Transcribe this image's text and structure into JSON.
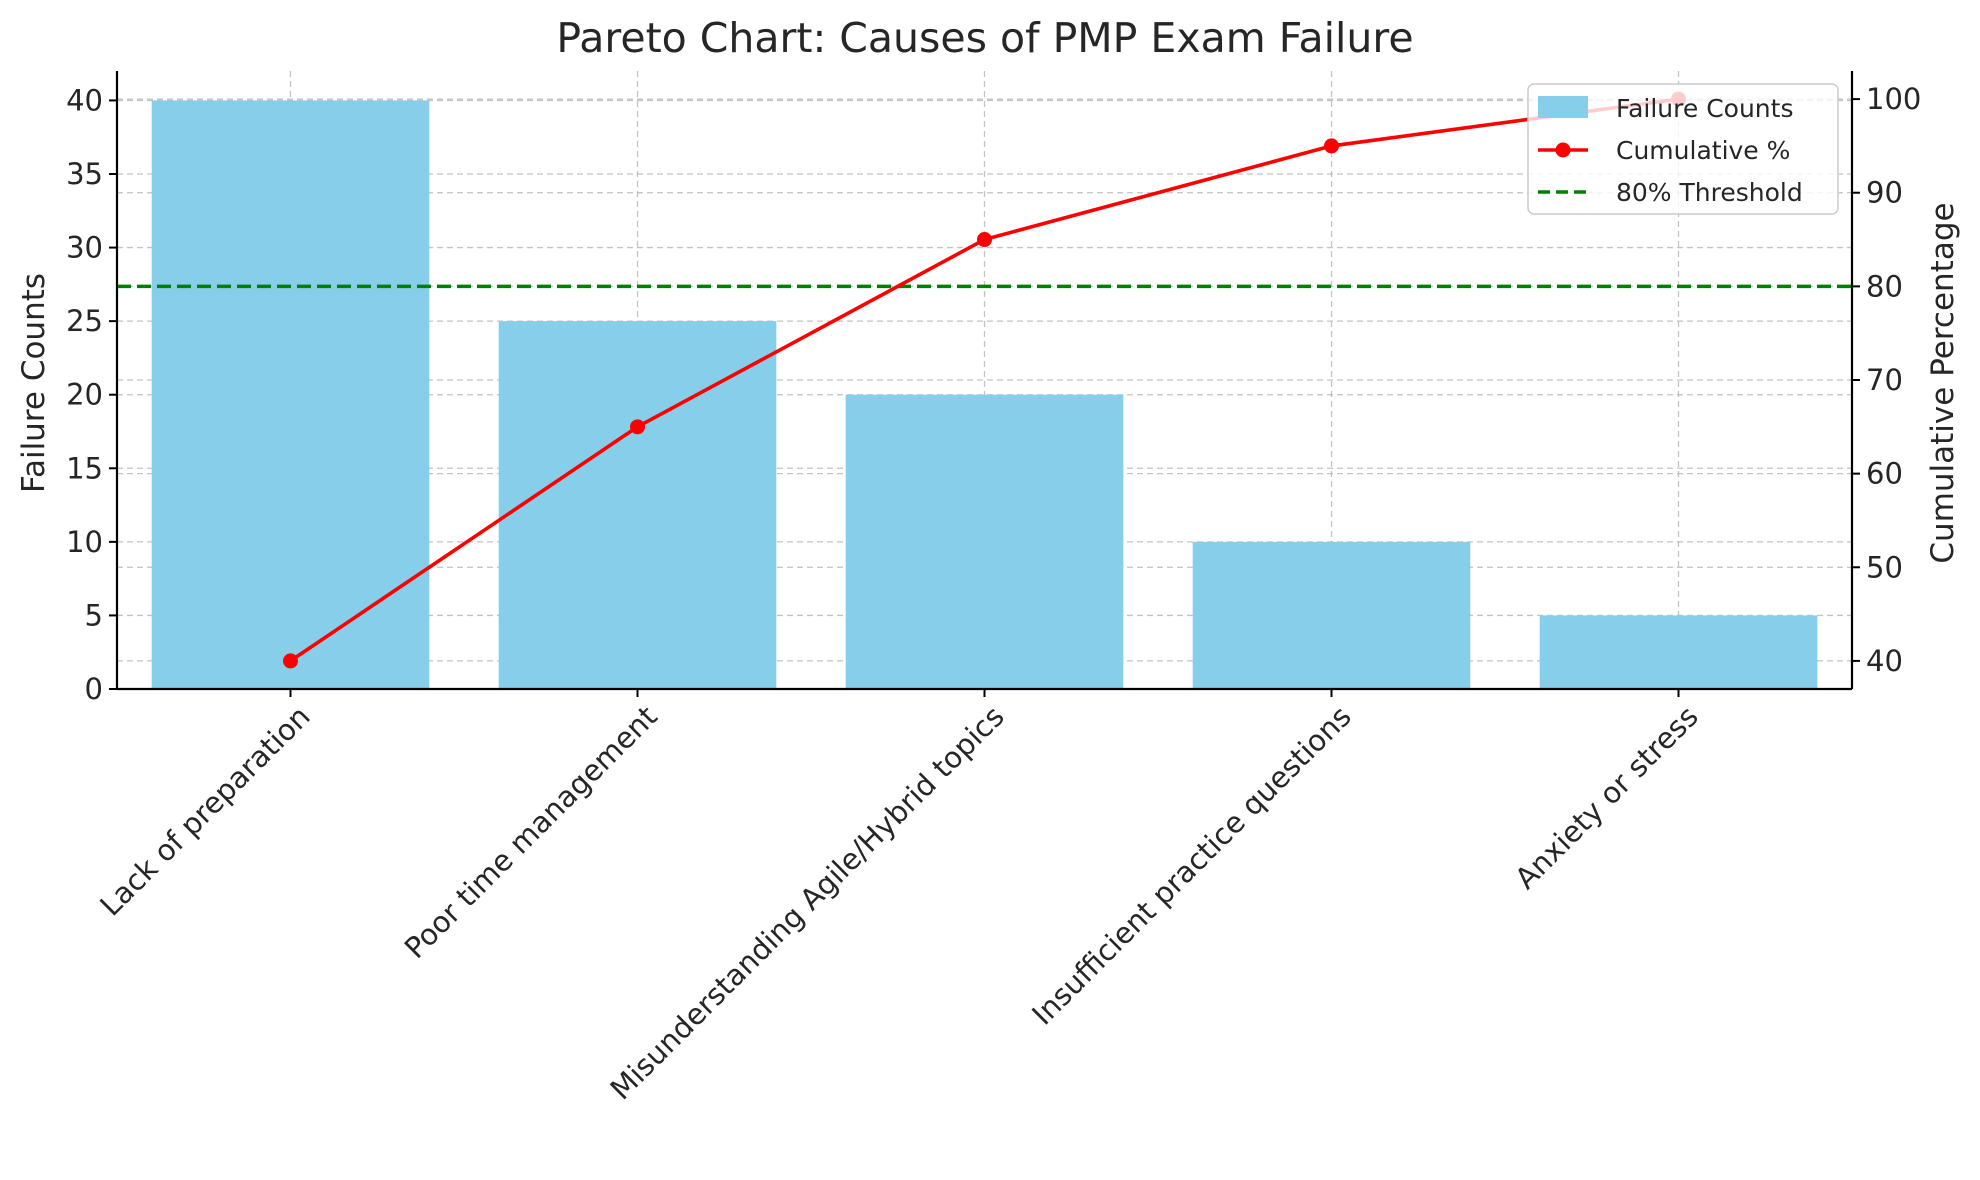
{
  "chart_data": {
    "type": "bar",
    "title": "Pareto Chart: Causes of PMP Exam Failure",
    "xlabel": "",
    "ylabel": "Failure Counts",
    "y2label": "Cumulative Percentage",
    "categories": [
      "Lack of preparation",
      "Poor time management",
      "Misunderstanding Agile/Hybrid topics",
      "Insufficient practice questions",
      "Anxiety or stress"
    ],
    "series": [
      {
        "name": "Failure Counts",
        "type": "bar",
        "axis": "left",
        "values": [
          40,
          25,
          20,
          10,
          5
        ],
        "color": "#87ceeb"
      },
      {
        "name": "Cumulative %",
        "type": "line",
        "axis": "right",
        "values": [
          40,
          65,
          85,
          95,
          100
        ],
        "color": "#ff0000"
      }
    ],
    "threshold": {
      "name": "80% Threshold",
      "value": 80,
      "axis": "right",
      "color": "#008000",
      "style": "dashed"
    },
    "ylim": [
      0,
      42
    ],
    "y2lim": [
      37,
      103
    ],
    "yticks": [
      0,
      5,
      10,
      15,
      20,
      25,
      30,
      35,
      40
    ],
    "y2ticks": [
      40,
      50,
      60,
      70,
      80,
      90,
      100
    ],
    "grid": true,
    "legend_position": "top-right"
  }
}
